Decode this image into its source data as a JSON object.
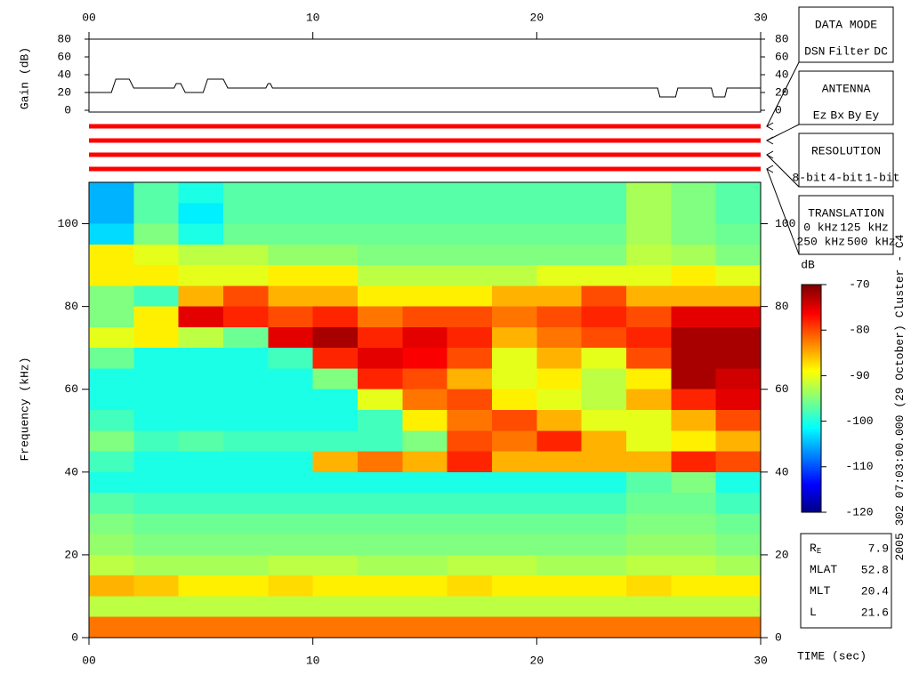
{
  "chart_data": [
    {
      "type": "heatmap",
      "xlabel": "TIME (sec)",
      "ylabel": "Frequency (kHz)",
      "xlim": [
        0,
        30
      ],
      "ylim": [
        0,
        110
      ],
      "xticks": [
        {
          "value": 0,
          "label": "00"
        },
        10,
        20,
        30
      ],
      "yticks": [
        0,
        20,
        40,
        60,
        80,
        100
      ],
      "x_bins": [
        0,
        2,
        4,
        6,
        8,
        10,
        12,
        14,
        16,
        18,
        20,
        22,
        24,
        26,
        28,
        30
      ],
      "y_bins": [
        0,
        5,
        10,
        15,
        20,
        25,
        30,
        35,
        40,
        45,
        50,
        55,
        60,
        65,
        70,
        75,
        80,
        85,
        90,
        95,
        100,
        105,
        110
      ],
      "z": [
        [
          -82,
          -82,
          -82,
          -82,
          -82,
          -82,
          -82,
          -82,
          -82,
          -82,
          -82,
          -82,
          -82,
          -82,
          -82
        ],
        [
          -92,
          -92,
          -92,
          -92,
          -92,
          -92,
          -92,
          -92,
          -92,
          -92,
          -92,
          -92,
          -92,
          -92,
          -92
        ],
        [
          -85,
          -86,
          -88,
          -88,
          -87,
          -88,
          -88,
          -88,
          -87,
          -88,
          -88,
          -88,
          -87,
          -88,
          -88
        ],
        [
          -92,
          -93,
          -93,
          -93,
          -92,
          -92,
          -93,
          -93,
          -92,
          -92,
          -93,
          -93,
          -92,
          -92,
          -93
        ],
        [
          -94,
          -95,
          -95,
          -95,
          -95,
          -95,
          -95,
          -95,
          -95,
          -95,
          -95,
          -95,
          -94,
          -94,
          -95
        ],
        [
          -95,
          -96,
          -96,
          -96,
          -96,
          -96,
          -96,
          -96,
          -96,
          -96,
          -96,
          -96,
          -95,
          -95,
          -96
        ],
        [
          -97,
          -98,
          -98,
          -98,
          -98,
          -98,
          -98,
          -98,
          -98,
          -98,
          -98,
          -98,
          -96,
          -96,
          -98
        ],
        [
          -100,
          -100,
          -100,
          -100,
          -100,
          -100,
          -100,
          -100,
          -100,
          -100,
          -100,
          -100,
          -97,
          -95,
          -100
        ],
        [
          -98,
          -100,
          -100,
          -100,
          -100,
          -85,
          -82,
          -85,
          -78,
          -85,
          -85,
          -85,
          -85,
          -78,
          -80
        ],
        [
          -95,
          -98,
          -97,
          -98,
          -98,
          -98,
          -98,
          -95,
          -80,
          -82,
          -78,
          -85,
          -90,
          -88,
          -85
        ],
        [
          -98,
          -100,
          -100,
          -100,
          -100,
          -100,
          -98,
          -88,
          -82,
          -80,
          -85,
          -90,
          -90,
          -85,
          -80
        ],
        [
          -100,
          -100,
          -100,
          -100,
          -100,
          -100,
          -90,
          -82,
          -80,
          -88,
          -90,
          -92,
          -85,
          -78,
          -75
        ],
        [
          -100,
          -100,
          -100,
          -100,
          -100,
          -95,
          -78,
          -80,
          -85,
          -90,
          -88,
          -92,
          -88,
          -72,
          -74
        ],
        [
          -96,
          -100,
          -100,
          -100,
          -98,
          -78,
          -75,
          -76,
          -80,
          -90,
          -85,
          -90,
          -80,
          -72,
          -72
        ],
        [
          -90,
          -88,
          -92,
          -96,
          -75,
          -72,
          -78,
          -75,
          -78,
          -85,
          -82,
          -80,
          -78,
          -72,
          -72
        ],
        [
          -95,
          -88,
          -75,
          -78,
          -80,
          -78,
          -82,
          -80,
          -80,
          -82,
          -80,
          -78,
          -80,
          -75,
          -75
        ],
        [
          -95,
          -98,
          -85,
          -80,
          -85,
          -85,
          -88,
          -88,
          -88,
          -85,
          -85,
          -80,
          -85,
          -85,
          -85
        ],
        [
          -88,
          -88,
          -90,
          -90,
          -88,
          -88,
          -92,
          -92,
          -92,
          -92,
          -90,
          -90,
          -90,
          -88,
          -90
        ],
        [
          -88,
          -90,
          -92,
          -92,
          -94,
          -94,
          -95,
          -95,
          -95,
          -95,
          -95,
          -95,
          -92,
          -93,
          -95
        ],
        [
          -103,
          -95,
          -100,
          -96,
          -96,
          -96,
          -96,
          -96,
          -96,
          -96,
          -96,
          -96,
          -93,
          -95,
          -96
        ],
        [
          -105,
          -97,
          -102,
          -97,
          -97,
          -97,
          -97,
          -97,
          -97,
          -97,
          -97,
          -97,
          -93,
          -95,
          -97
        ],
        [
          -105,
          -97,
          -100,
          -97,
          -97,
          -97,
          -97,
          -97,
          -97,
          -97,
          -97,
          -97,
          -93,
          -95,
          -97
        ]
      ],
      "colorbar": {
        "label": "dB",
        "zlim": [
          -120,
          -70
        ],
        "ticks": [
          -120,
          -110,
          -100,
          -90,
          -80,
          -70
        ],
        "colormap": "jet"
      }
    },
    {
      "type": "line",
      "ylabel": "Gain (dB)",
      "xlim": [
        0,
        30
      ],
      "ylim": [
        0,
        80
      ],
      "xticks": [
        {
          "value": 0,
          "label": "00"
        },
        10,
        20,
        30
      ],
      "yticks": [
        0,
        20,
        40,
        60,
        80
      ],
      "series": [
        {
          "color": "#000000",
          "x": [
            0,
            1,
            1.2,
            1.8,
            2,
            3.8,
            3.9,
            4.1,
            4.3,
            5.1,
            5.3,
            6,
            6.2,
            7.9,
            8,
            8.1,
            8.2,
            25.4,
            25.5,
            26.2,
            26.3,
            27.8,
            27.9,
            28.4,
            28.5,
            30
          ],
          "values": [
            20,
            20,
            35,
            35,
            25,
            25,
            30,
            30,
            20,
            20,
            35,
            35,
            25,
            25,
            30,
            30,
            25,
            25,
            15,
            15,
            25,
            25,
            15,
            15,
            25,
            25
          ]
        }
      ]
    }
  ],
  "side_panel": {
    "data_mode": {
      "title": "DATA MODE",
      "options": [
        {
          "text": "DSN",
          "color": "#ff0000"
        },
        {
          "text": "Filter",
          "color": "#00cc00"
        },
        {
          "text": "DC",
          "color": "#0000ff"
        }
      ]
    },
    "antenna": {
      "title": "ANTENNA",
      "options": [
        {
          "text": "Ez",
          "color": "#ff0000"
        },
        {
          "text": "Bx",
          "color": "#00cc00"
        },
        {
          "text": "By",
          "color": "#0000ff"
        },
        {
          "text": "Ey",
          "color": "#000000"
        }
      ]
    },
    "resolution": {
      "title": "RESOLUTION",
      "options": [
        {
          "text": "8-bit",
          "color": "#ff0000"
        },
        {
          "text": "4-bit",
          "color": "#00cc00"
        },
        {
          "text": "1-bit",
          "color": "#0000ff"
        }
      ]
    },
    "translation": {
      "title": "TRANSLATION",
      "options": [
        {
          "text": "0 kHz",
          "color": "#ff0000"
        },
        {
          "text": "125 kHz",
          "color": "#00cc00"
        },
        {
          "text": "250 kHz",
          "color": "#0000ff"
        },
        {
          "text": "500 kHz",
          "color": "#000000"
        }
      ]
    },
    "selected_color": "#ff0000"
  },
  "annotation": {
    "date": "2005 302 07:03:00.000 (29 October)",
    "spacecraft": "Cluster - C4"
  },
  "info": [
    {
      "label": "R",
      "label_sub": "E",
      "value": 7.9
    },
    {
      "label": "MLAT",
      "value": 52.8
    },
    {
      "label": "MLT",
      "value": 20.4
    },
    {
      "label": "L",
      "value": 21.6
    }
  ]
}
